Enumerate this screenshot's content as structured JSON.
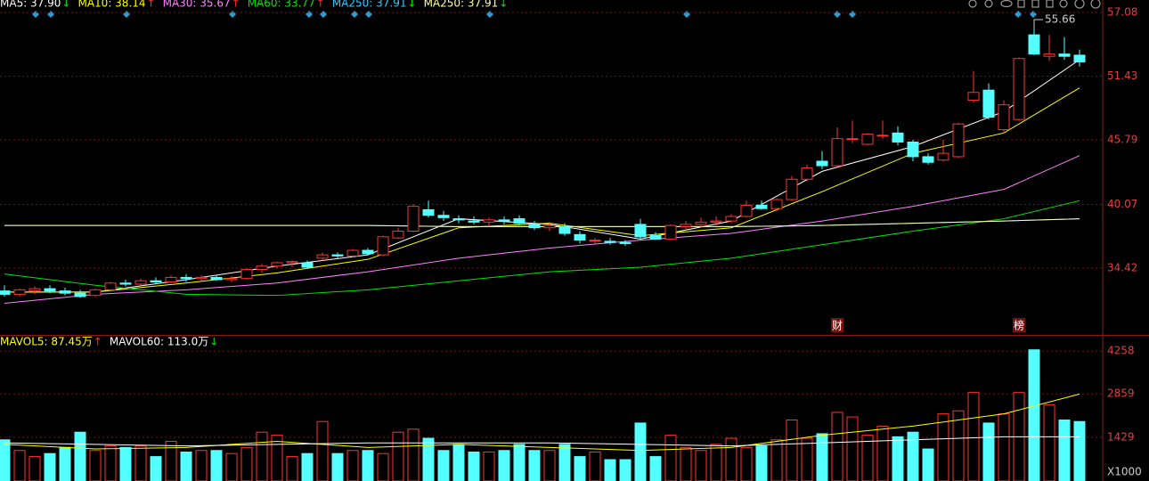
{
  "chart_data": [
    {
      "type": "candlestick",
      "open": [
        32.4,
        32.1,
        32.4,
        32.6,
        32.4,
        32.2,
        32.0,
        32.5,
        33.1,
        33.0,
        33.3,
        33.2,
        33.6,
        33.5,
        33.6,
        33.4,
        33.5,
        34.3,
        34.6,
        34.9,
        34.9,
        35.3,
        35.6,
        35.5,
        36.0,
        35.6,
        37.1,
        37.7,
        39.6,
        39.1,
        38.8,
        38.6,
        38.5,
        38.7,
        38.8,
        38.3,
        38.0,
        38.1,
        37.4,
        36.9,
        36.8,
        36.7,
        38.3,
        37.3,
        37.0,
        38.1,
        38.3,
        38.5,
        38.6,
        39.0,
        40.0,
        39.7,
        40.5,
        42.3,
        43.9,
        43.5,
        45.9,
        45.4,
        46.2,
        46.4,
        45.6,
        44.3,
        44.0,
        44.3,
        49.3,
        50.2,
        46.7,
        47.6,
        55.1,
        53.2,
        53.4,
        53.3
      ],
      "high": [
        32.9,
        32.6,
        32.8,
        32.9,
        32.7,
        32.5,
        32.6,
        33.2,
        33.4,
        33.5,
        33.6,
        33.8,
        33.9,
        33.8,
        33.8,
        33.7,
        34.4,
        34.8,
        35.0,
        35.1,
        35.1,
        35.8,
        35.8,
        36.1,
        36.2,
        37.3,
        38.0,
        40.1,
        40.4,
        39.5,
        39.1,
        39.0,
        38.9,
        39.0,
        39.1,
        38.6,
        38.5,
        38.4,
        37.7,
        37.1,
        37.1,
        36.9,
        38.8,
        37.6,
        38.3,
        38.6,
        38.9,
        39.0,
        39.2,
        40.4,
        40.4,
        40.6,
        42.6,
        43.6,
        44.8,
        46.9,
        47.5,
        46.4,
        47.5,
        47.0,
        45.8,
        44.6,
        45.8,
        47.3,
        51.9,
        50.8,
        49.3,
        53.1,
        55.66,
        55.1,
        54.9,
        53.8
      ],
      "low": [
        31.9,
        31.9,
        32.1,
        32.2,
        32.0,
        31.8,
        31.9,
        32.4,
        32.8,
        32.9,
        33.0,
        33.1,
        33.2,
        33.3,
        33.3,
        33.2,
        33.4,
        34.0,
        34.4,
        34.5,
        34.4,
        35.1,
        35.3,
        35.4,
        35.6,
        35.5,
        37.0,
        37.6,
        38.9,
        38.6,
        38.4,
        38.3,
        38.1,
        38.3,
        38.2,
        37.8,
        37.7,
        37.3,
        36.6,
        36.6,
        36.5,
        36.4,
        37.0,
        36.9,
        36.9,
        37.8,
        38.0,
        38.2,
        38.4,
        38.9,
        39.6,
        39.5,
        40.4,
        42.1,
        43.2,
        43.4,
        45.5,
        45.3,
        45.9,
        45.3,
        43.9,
        43.6,
        43.9,
        44.2,
        49.1,
        47.6,
        46.4,
        47.5,
        53.3,
        52.8,
        52.9,
        52.3
      ],
      "close": [
        32.1,
        32.5,
        32.6,
        32.4,
        32.2,
        31.9,
        32.5,
        33.1,
        33.0,
        33.3,
        33.2,
        33.6,
        33.5,
        33.6,
        33.4,
        33.5,
        34.3,
        34.6,
        34.9,
        35.0,
        34.5,
        35.6,
        35.5,
        36.0,
        35.7,
        37.2,
        37.7,
        39.9,
        39.1,
        38.9,
        38.7,
        38.5,
        38.7,
        38.6,
        38.4,
        38.0,
        38.2,
        37.5,
        36.9,
        36.9,
        36.7,
        36.6,
        37.2,
        37.0,
        38.2,
        38.3,
        38.5,
        38.6,
        39.0,
        40.0,
        39.7,
        40.5,
        42.3,
        43.3,
        43.5,
        45.9,
        45.9,
        46.3,
        46.2,
        45.6,
        44.3,
        43.8,
        44.6,
        47.2,
        50.0,
        47.8,
        48.9,
        53.0,
        53.4,
        53.4,
        53.2,
        52.7
      ],
      "up_color": "#ff3232",
      "down_color": "#54ffff",
      "series": [
        {
          "name": "MA5: 37.90",
          "trend": "↓",
          "color": "#ffffff",
          "x": [
            0,
            6,
            12,
            18,
            24,
            30,
            36,
            42,
            48,
            54,
            60,
            66,
            71
          ],
          "values": [
            32.3,
            32.3,
            33.4,
            34.6,
            35.6,
            38.8,
            38.3,
            37.0,
            38.6,
            43.0,
            45.2,
            48.3,
            52.9
          ]
        },
        {
          "name": "MA10: 38.14",
          "trend": "↑",
          "color": "#ffff00",
          "x": [
            0,
            6,
            12,
            18,
            24,
            30,
            36,
            42,
            48,
            54,
            60,
            66,
            71
          ],
          "values": [
            32.3,
            32.3,
            33.1,
            34.0,
            35.2,
            38.0,
            38.4,
            37.3,
            38.0,
            41.2,
            44.6,
            46.4,
            50.4
          ]
        },
        {
          "name": "MA30: 35.67",
          "trend": "↑",
          "color": "#ff80ff",
          "x": [
            0,
            6,
            12,
            18,
            24,
            30,
            36,
            42,
            48,
            54,
            60,
            66,
            71
          ],
          "values": [
            31.3,
            32.1,
            32.5,
            33.1,
            34.1,
            35.3,
            36.2,
            36.9,
            37.5,
            38.6,
            39.9,
            41.4,
            44.4
          ]
        },
        {
          "name": "MA60: 33.77",
          "trend": "↑",
          "color": "#00e600",
          "x": [
            0,
            6,
            12,
            18,
            24,
            30,
            36,
            42,
            48,
            54,
            60,
            66,
            71
          ],
          "values": [
            33.9,
            32.9,
            32.1,
            32.0,
            32.5,
            33.3,
            34.1,
            34.5,
            35.3,
            36.5,
            37.7,
            38.8,
            40.4
          ]
        },
        {
          "name": "MA250: 37.91",
          "trend": "↓",
          "color": "#33ccff",
          "x": [
            0,
            6,
            12,
            18,
            24,
            30,
            36,
            42,
            48,
            54,
            60,
            66,
            71
          ],
          "values": [
            38.2,
            38.2,
            38.2,
            38.2,
            38.2,
            38.1,
            38.1,
            38.1,
            38.1,
            38.2,
            38.4,
            38.6,
            38.8
          ]
        },
        {
          "name": "MA250: 37.91",
          "trend": "↓",
          "color": "#ffffa0",
          "x": [
            0,
            6,
            12,
            18,
            24,
            30,
            36,
            42,
            48,
            54,
            60,
            66,
            71
          ],
          "values": [
            38.2,
            38.2,
            38.2,
            38.2,
            38.2,
            38.1,
            38.1,
            38.1,
            38.1,
            38.2,
            38.4,
            38.6,
            38.8
          ]
        }
      ],
      "max_label": "55.66",
      "markers": [
        "财",
        "榜"
      ],
      "ylim": [
        28.58,
        58.19
      ],
      "yticks": [
        34.42,
        40.07,
        45.79,
        51.43,
        57.08
      ],
      "grid": true
    },
    {
      "type": "volume",
      "values": [
        1350,
        1000,
        800,
        900,
        1100,
        1600,
        1000,
        1150,
        1100,
        1150,
        800,
        1300,
        950,
        1000,
        1000,
        900,
        1100,
        1600,
        1500,
        800,
        900,
        1950,
        900,
        1000,
        1000,
        900,
        1600,
        1700,
        1400,
        1000,
        1200,
        950,
        950,
        1000,
        1200,
        1000,
        1000,
        1200,
        800,
        950,
        700,
        700,
        1900,
        800,
        1500,
        1100,
        1000,
        1200,
        1400,
        1100,
        1150,
        1350,
        2000,
        1400,
        1550,
        2250,
        2100,
        1500,
        1800,
        1450,
        1600,
        1050,
        2200,
        2300,
        2900,
        1900,
        2200,
        2900,
        4300,
        2500,
        2000,
        1950
      ],
      "series": [
        {
          "name": "MAVOL5: 87.45万",
          "trend": "↑",
          "color": "#ffff00",
          "x": [
            0,
            6,
            12,
            18,
            24,
            30,
            36,
            42,
            48,
            54,
            60,
            66,
            71
          ],
          "values": [
            1200,
            1050,
            1100,
            1300,
            1100,
            1200,
            1100,
            1000,
            1100,
            1500,
            1800,
            2200,
            2850
          ]
        },
        {
          "name": "MAVOL60: 113.0万",
          "trend": "↓",
          "color": "#ffffff",
          "x": [
            0,
            6,
            12,
            18,
            24,
            30,
            36,
            42,
            48,
            54,
            60,
            66,
            71
          ],
          "values": [
            1250,
            1200,
            1150,
            1200,
            1250,
            1250,
            1250,
            1200,
            1150,
            1250,
            1350,
            1450,
            1450
          ]
        }
      ],
      "unit_label": "X1000",
      "ylim": [
        0,
        4730
      ],
      "yticks": [
        1429,
        2859,
        4258
      ],
      "grid": true
    }
  ]
}
